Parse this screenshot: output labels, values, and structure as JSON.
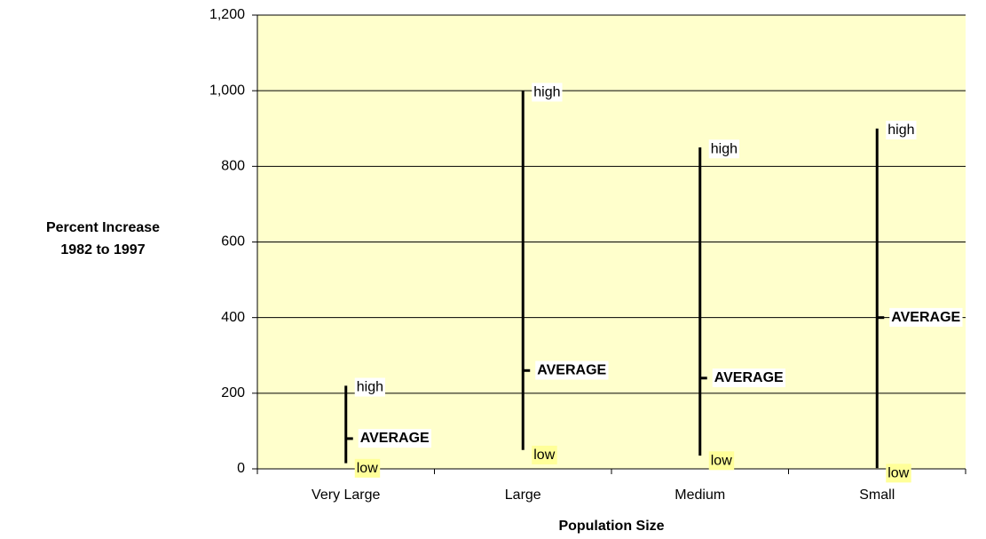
{
  "chart_data": {
    "type": "high-low-average",
    "ylabel": [
      "Percent Increase",
      "1982 to 1997"
    ],
    "xlabel": "Population Size",
    "categories": [
      "Very Large",
      "Large",
      "Medium",
      "Small"
    ],
    "series": [
      {
        "name": "high",
        "values": [
          220,
          1000,
          850,
          900
        ]
      },
      {
        "name": "low",
        "values": [
          15,
          50,
          35,
          2
        ]
      },
      {
        "name": "AVERAGE",
        "values": [
          80,
          260,
          240,
          400
        ]
      }
    ],
    "color": "#000000",
    "background": "#ffffcc",
    "ylim": [
      0,
      1200
    ],
    "yticks": [
      0,
      200,
      400,
      600,
      800,
      {
        "value": 1000,
        "label": "1,000"
      },
      {
        "value": 1200,
        "label": "1,200"
      }
    ],
    "grid": true
  }
}
